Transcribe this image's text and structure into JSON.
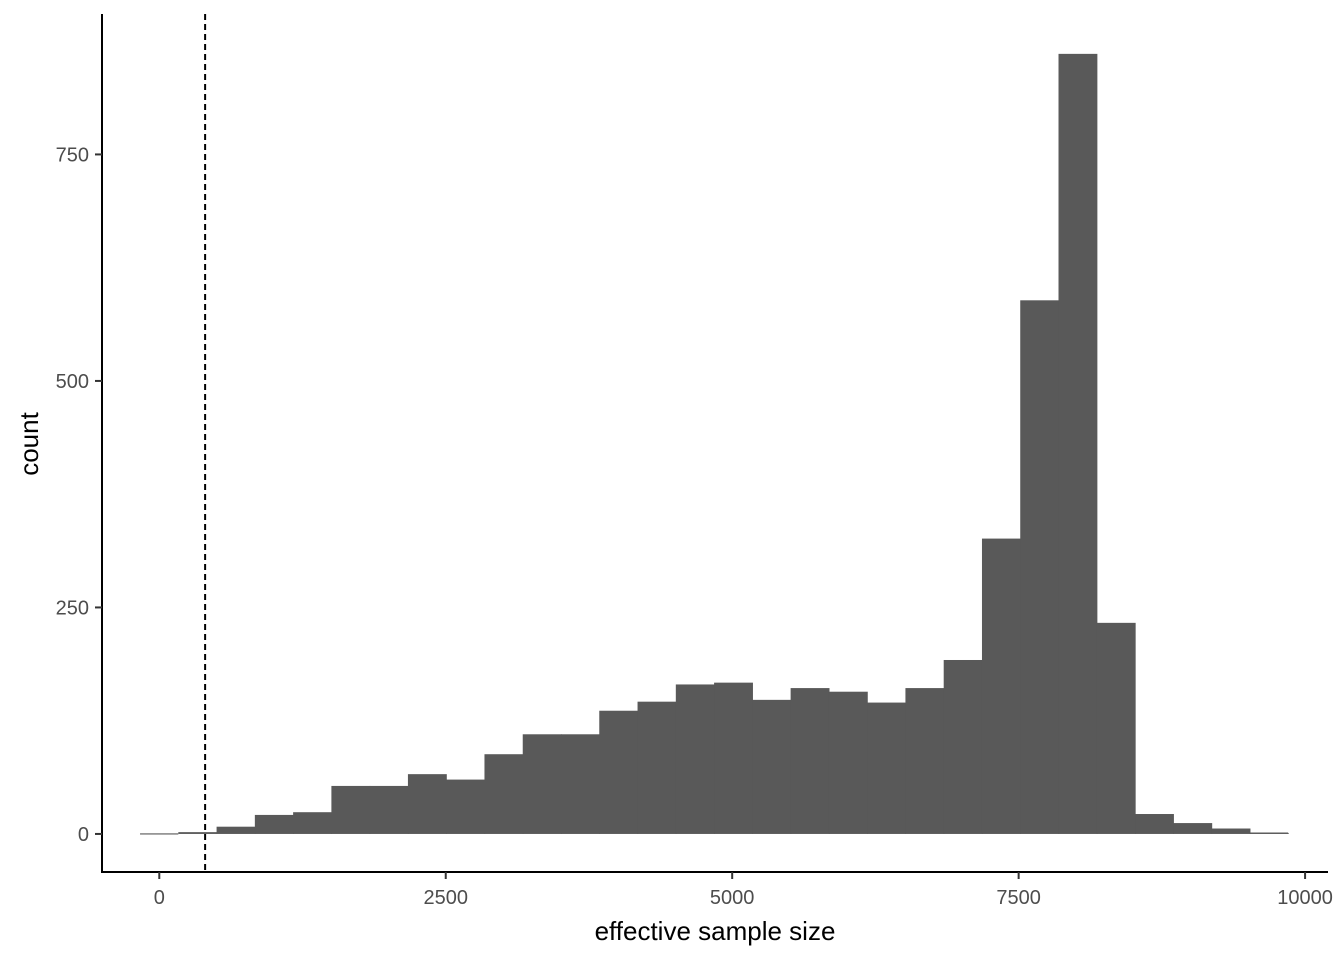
{
  "chart_data": {
    "type": "bar",
    "subtype": "histogram",
    "title": "",
    "xlabel": "effective sample size",
    "ylabel": "count",
    "xlim": [
      -500,
      10200
    ],
    "ylim": [
      -42,
      905
    ],
    "x_ticks": [
      0,
      2500,
      5000,
      7500,
      10000
    ],
    "y_ticks": [
      0,
      250,
      500,
      750
    ],
    "grid": false,
    "legend": "none",
    "bar_color": "#595959",
    "bin_width": 334,
    "bins": [
      {
        "x0": -168,
        "x1": 166,
        "count": 0
      },
      {
        "x0": 166,
        "x1": 500,
        "count": 2
      },
      {
        "x0": 500,
        "x1": 834,
        "count": 8
      },
      {
        "x0": 834,
        "x1": 1168,
        "count": 21
      },
      {
        "x0": 1168,
        "x1": 1502,
        "count": 24
      },
      {
        "x0": 1502,
        "x1": 1836,
        "count": 53
      },
      {
        "x0": 1836,
        "x1": 2170,
        "count": 53
      },
      {
        "x0": 2170,
        "x1": 2504,
        "count": 66
      },
      {
        "x0": 2504,
        "x1": 2838,
        "count": 60
      },
      {
        "x0": 2838,
        "x1": 3172,
        "count": 88
      },
      {
        "x0": 3172,
        "x1": 3506,
        "count": 110
      },
      {
        "x0": 3506,
        "x1": 3840,
        "count": 110
      },
      {
        "x0": 3840,
        "x1": 4174,
        "count": 136
      },
      {
        "x0": 4174,
        "x1": 4508,
        "count": 146
      },
      {
        "x0": 4508,
        "x1": 4842,
        "count": 165
      },
      {
        "x0": 4842,
        "x1": 5176,
        "count": 167
      },
      {
        "x0": 5176,
        "x1": 5510,
        "count": 148
      },
      {
        "x0": 5510,
        "x1": 5844,
        "count": 161
      },
      {
        "x0": 5844,
        "x1": 6178,
        "count": 157
      },
      {
        "x0": 6178,
        "x1": 6512,
        "count": 145
      },
      {
        "x0": 6512,
        "x1": 6846,
        "count": 161
      },
      {
        "x0": 6846,
        "x1": 7180,
        "count": 192
      },
      {
        "x0": 7180,
        "x1": 7514,
        "count": 326
      },
      {
        "x0": 7514,
        "x1": 7848,
        "count": 589
      },
      {
        "x0": 7848,
        "x1": 8182,
        "count": 861
      },
      {
        "x0": 8182,
        "x1": 8516,
        "count": 233
      },
      {
        "x0": 8516,
        "x1": 8850,
        "count": 22
      },
      {
        "x0": 8850,
        "x1": 9184,
        "count": 12
      },
      {
        "x0": 9184,
        "x1": 9518,
        "count": 6
      },
      {
        "x0": 9518,
        "x1": 9852,
        "count": 1
      }
    ],
    "vline": {
      "x": 400,
      "style": "dashed",
      "color": "#000000"
    }
  }
}
